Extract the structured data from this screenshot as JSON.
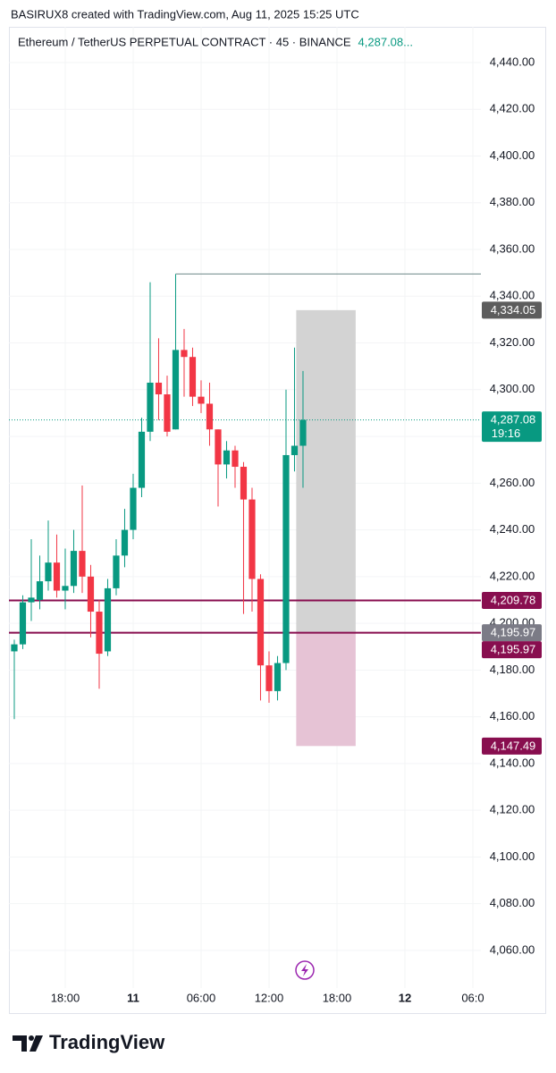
{
  "header": {
    "credit": "BASIRUX8 created with TradingView.com, Aug 11, 2025 15:25 UTC"
  },
  "footer": {
    "brand": "TradingView"
  },
  "chart_data": {
    "type": "candlestick",
    "title": "Ethereum / TetherUS PERPETUAL CONTRACT · 45 · BINANCE",
    "last_price_text": "4,287.08...",
    "up_color": "#089981",
    "down_color": "#f23645",
    "open": [
      4188,
      4191,
      4209,
      4210,
      4218,
      4226,
      4214,
      4216,
      4231,
      4220,
      4205,
      4188,
      4215,
      4229,
      4240,
      4258,
      4282,
      4303,
      4298,
      4283,
      4317,
      4314,
      4297,
      4294,
      4283,
      4268,
      4274,
      4267,
      4253,
      4219,
      4182,
      4171,
      4183,
      4272,
      4276
    ],
    "high": [
      4193,
      4212,
      4236,
      4229,
      4244,
      4238,
      4232,
      4240,
      4259,
      4225,
      4210,
      4219,
      4236,
      4249,
      4264,
      4288,
      4346,
      4322,
      4306,
      4349.5,
      4326,
      4318,
      4304,
      4303,
      4283,
      4278,
      4276,
      4269,
      4258,
      4221,
      4188,
      4186,
      4300,
      4318,
      4308
    ],
    "low": [
      4159,
      4189,
      4201,
      4206,
      4214,
      4211,
      4206,
      4213,
      4213,
      4194,
      4172,
      4186,
      4212,
      4224,
      4236,
      4254,
      4278,
      4287,
      4280,
      4283,
      4297,
      4293,
      4290,
      4276,
      4250,
      4262,
      4258,
      4204,
      4205,
      4167,
      4166,
      4167,
      4180,
      4265,
      4258
    ],
    "close": [
      4191,
      4209,
      4211,
      4218,
      4226,
      4214,
      4216,
      4231,
      4220,
      4205,
      4187,
      4215,
      4229,
      4240,
      4258,
      4282,
      4303,
      4298,
      4282,
      4317,
      4314,
      4297,
      4294,
      4283,
      4268,
      4274,
      4267,
      4253,
      4219,
      4182,
      4171,
      4183,
      4272,
      4276,
      4287.08
    ],
    "xlim": [
      -0.63,
      54.95
    ],
    "xticks": [
      {
        "value": 6,
        "label": "18:00"
      },
      {
        "value": 14,
        "label": "11"
      },
      {
        "value": 22,
        "label": "06:00"
      },
      {
        "value": 30,
        "label": "12:00"
      },
      {
        "value": 38,
        "label": "18:00"
      },
      {
        "value": 46,
        "label": "12"
      },
      {
        "value": 54,
        "label": "06:0"
      }
    ],
    "ylim": [
      4043.9,
      4455.3
    ],
    "yticks": [
      {
        "value": 4060,
        "label": "4,060.00"
      },
      {
        "value": 4080,
        "label": "4,080.00"
      },
      {
        "value": 4100,
        "label": "4,100.00"
      },
      {
        "value": 4120,
        "label": "4,120.00"
      },
      {
        "value": 4140,
        "label": "4,140.00"
      },
      {
        "value": 4160,
        "label": "4,160.00"
      },
      {
        "value": 4180,
        "label": "4,180.00"
      },
      {
        "value": 4200,
        "label": "4,200.00"
      },
      {
        "value": 4220,
        "label": "4,220.00"
      },
      {
        "value": 4240,
        "label": "4,240.00"
      },
      {
        "value": 4260,
        "label": "4,260.00"
      },
      {
        "value": 4280,
        "label": "4,280.00"
      },
      {
        "value": 4300,
        "label": "4,300.00"
      },
      {
        "value": 4320,
        "label": "4,320.00"
      },
      {
        "value": 4340,
        "label": "4,340.00"
      },
      {
        "value": 4360,
        "label": "4,360.00"
      },
      {
        "value": 4380,
        "label": "4,380.00"
      },
      {
        "value": 4400,
        "label": "4,400.00"
      },
      {
        "value": 4420,
        "label": "4,420.00"
      },
      {
        "value": 4440,
        "label": "4,440.00"
      }
    ],
    "grid": true,
    "ray": {
      "x": 19,
      "value": 4349.5,
      "color": "#7d9494"
    },
    "levels": [
      {
        "value": 4209.78,
        "label": "4,209.78",
        "color": "#880e4f"
      },
      {
        "value": 4195.97,
        "label": "4,195.97",
        "color": "#880e4f"
      }
    ],
    "position": {
      "x": [
        33.2,
        40.2
      ],
      "target": {
        "value": 4334.05,
        "label": "4,334.05",
        "color": "#5d5d5d"
      },
      "entry": {
        "value": 4195.97,
        "label": "4,195.97",
        "color": "#7b7b86"
      },
      "stop": {
        "value": 4147.49,
        "label": "4,147.49",
        "color": "#880e4f"
      },
      "profit_color": "#d3d3d3",
      "loss_color": "#e6c3d5"
    },
    "last": {
      "value": 4287.08,
      "label": "4,287.08",
      "countdown": "19:16",
      "color": "#089981"
    }
  }
}
